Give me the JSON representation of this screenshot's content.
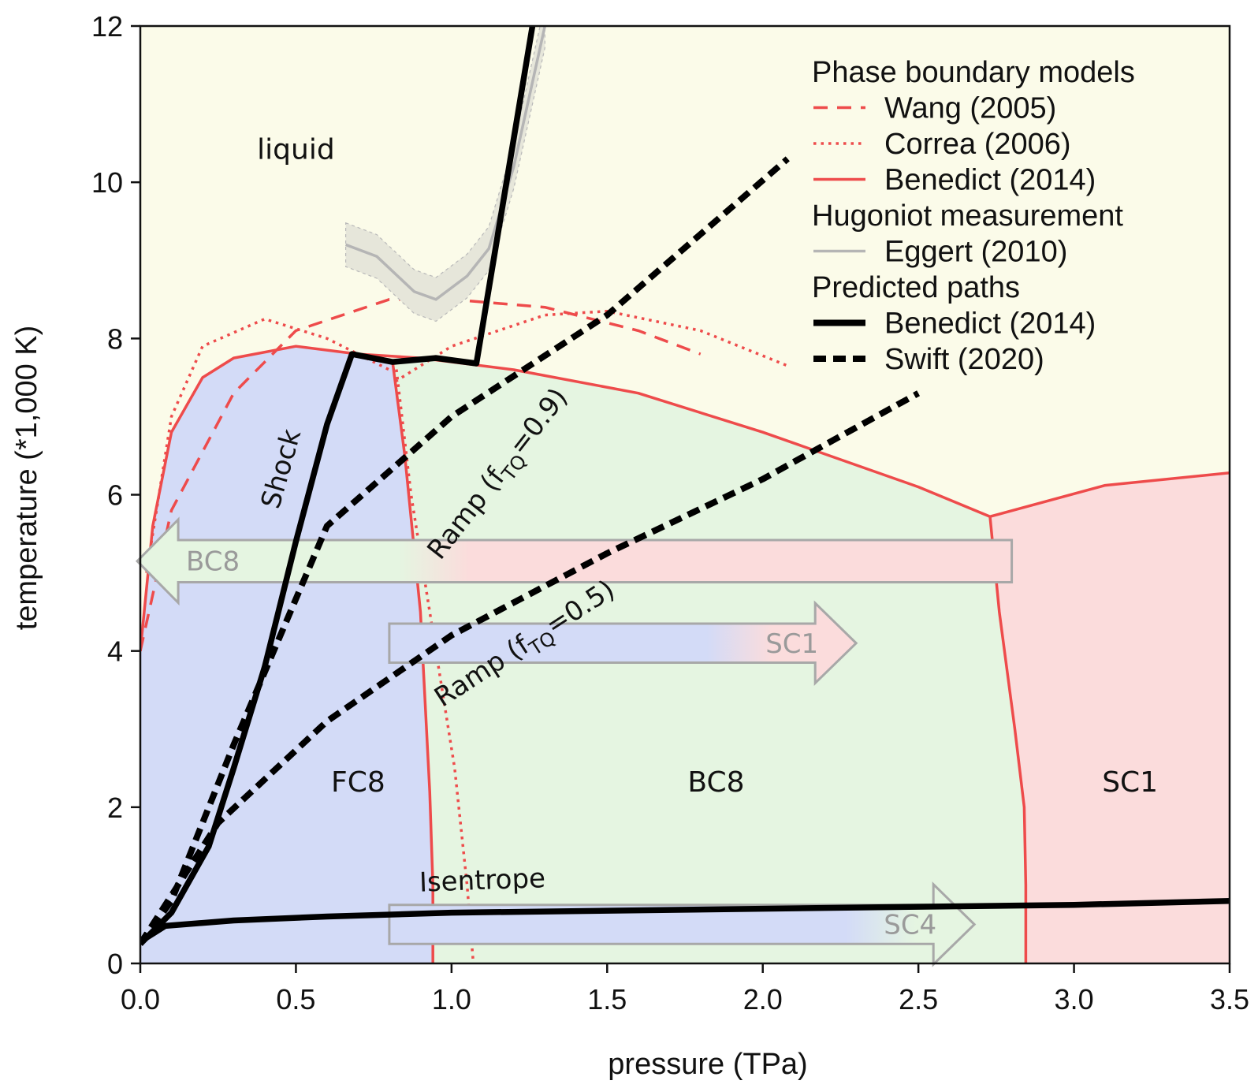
{
  "chart_data": {
    "type": "line",
    "xlabel": "pressure (TPa)",
    "ylabel": "temperature (*1,000 K)",
    "xlim": [
      0,
      3.5
    ],
    "ylim": [
      0,
      12
    ],
    "xticks": [
      "0.0",
      "0.5",
      "1.0",
      "1.5",
      "2.0",
      "2.5",
      "3.0",
      "3.5"
    ],
    "yticks": [
      "0",
      "2",
      "4",
      "6",
      "8",
      "10",
      "12"
    ],
    "colors": {
      "liquid": "#fbfbe9",
      "fc8": "#d3dbf7",
      "bc8": "#e5f5e1",
      "sc1": "#fbdcdc",
      "boundary": "#ee4b4b",
      "path": "#000000",
      "hugoniot": "#b5b5b5",
      "arrow_outline": "#a8a8a8"
    },
    "legend": {
      "position": "top-right",
      "groups": [
        {
          "title": "Phase boundary models",
          "items": [
            {
              "label": "Wang (2005)",
              "style": "dashed",
              "color": "#ee4b4b"
            },
            {
              "label": "Correa (2006)",
              "style": "dotted",
              "color": "#ee4b4b"
            },
            {
              "label": "Benedict (2014)",
              "style": "solid",
              "color": "#ee4b4b"
            }
          ]
        },
        {
          "title": "Hugoniot measurement",
          "items": [
            {
              "label": "Eggert (2010)",
              "style": "solid",
              "color": "#b5b5b5"
            }
          ]
        },
        {
          "title": "Predicted paths",
          "items": [
            {
              "label": "Benedict (2014)",
              "style": "solid-thick",
              "color": "#000000"
            },
            {
              "label": "Swift (2020)",
              "style": "dashed-thick",
              "color": "#000000"
            }
          ]
        }
      ]
    },
    "regions": [
      {
        "label": "liquid",
        "x": 0.5,
        "y": 10.3
      },
      {
        "label": "FC8",
        "x": 0.7,
        "y": 2.2
      },
      {
        "label": "BC8",
        "x": 1.85,
        "y": 2.2
      },
      {
        "label": "SC1",
        "x": 3.18,
        "y": 2.2
      }
    ],
    "phase_boundaries": {
      "benedict_melt": [
        [
          0,
          4.0
        ],
        [
          0.04,
          5.6
        ],
        [
          0.1,
          6.8
        ],
        [
          0.2,
          7.5
        ],
        [
          0.3,
          7.75
        ],
        [
          0.5,
          7.9
        ],
        [
          0.7,
          7.8
        ],
        [
          0.9,
          7.75
        ],
        [
          1.2,
          7.6
        ],
        [
          1.6,
          7.3
        ],
        [
          2.0,
          6.8
        ],
        [
          2.5,
          6.1
        ],
        [
          2.73,
          5.72
        ],
        [
          3.1,
          6.12
        ],
        [
          3.5,
          6.28
        ]
      ],
      "benedict_fc8_bc8": [
        [
          0.81,
          7.72
        ],
        [
          0.85,
          6.5
        ],
        [
          0.9,
          4.5
        ],
        [
          0.93,
          2.2
        ],
        [
          0.94,
          1.0
        ],
        [
          0.94,
          0
        ]
      ],
      "benedict_bc8_sc1": [
        [
          2.73,
          5.72
        ],
        [
          2.76,
          4.5
        ],
        [
          2.81,
          3.0
        ],
        [
          2.84,
          2.0
        ],
        [
          2.845,
          1.0
        ],
        [
          2.845,
          0
        ]
      ],
      "wang_melt": [
        [
          0.0,
          4.0
        ],
        [
          0.1,
          5.8
        ],
        [
          0.3,
          7.3
        ],
        [
          0.5,
          8.1
        ],
        [
          0.8,
          8.5
        ],
        [
          1.0,
          8.5
        ],
        [
          1.3,
          8.4
        ],
        [
          1.6,
          8.1
        ],
        [
          1.8,
          7.8
        ]
      ],
      "correa_melt_fc8": [
        [
          0.02,
          5.0
        ],
        [
          0.1,
          7.0
        ],
        [
          0.2,
          7.9
        ],
        [
          0.4,
          8.25
        ],
        [
          0.6,
          8.0
        ],
        [
          0.8,
          7.6
        ]
      ],
      "correa_melt_bc8": [
        [
          0.82,
          7.45
        ],
        [
          1.0,
          7.9
        ],
        [
          1.3,
          8.3
        ],
        [
          1.5,
          8.35
        ],
        [
          1.8,
          8.1
        ],
        [
          2.08,
          7.65
        ]
      ],
      "correa_fc8_bc8": [
        [
          0.82,
          7.7
        ],
        [
          0.87,
          6.0
        ],
        [
          0.95,
          4.0
        ],
        [
          1.01,
          2.5
        ],
        [
          1.05,
          1.0
        ],
        [
          1.07,
          0
        ]
      ]
    },
    "series": [
      {
        "name": "Benedict (2014)",
        "label": "Shock",
        "style": "solid-thick",
        "points": [
          [
            0.0,
            0.25
          ],
          [
            0.1,
            0.65
          ],
          [
            0.22,
            1.5
          ],
          [
            0.3,
            2.5
          ],
          [
            0.4,
            3.8
          ],
          [
            0.5,
            5.4
          ],
          [
            0.6,
            6.9
          ],
          [
            0.68,
            7.8
          ],
          [
            0.81,
            7.7
          ],
          [
            0.95,
            7.75
          ],
          [
            1.08,
            7.68
          ],
          [
            1.26,
            12.0
          ]
        ]
      },
      {
        "name": "Benedict (2014)",
        "label": "Isentrope",
        "style": "solid-thick",
        "points": [
          [
            0.0,
            0.28
          ],
          [
            0.08,
            0.48
          ],
          [
            0.3,
            0.55
          ],
          [
            0.6,
            0.6
          ],
          [
            1.0,
            0.65
          ],
          [
            2.0,
            0.7
          ],
          [
            3.0,
            0.75
          ],
          [
            3.5,
            0.8
          ]
        ]
      },
      {
        "name": "Swift (2020)",
        "label": "Ramp (fTQ=0.9)",
        "style": "dashed-thick",
        "points": [
          [
            0.0,
            0.25
          ],
          [
            0.1,
            0.8
          ],
          [
            0.3,
            2.8
          ],
          [
            0.6,
            5.6
          ],
          [
            1.0,
            7.0
          ],
          [
            1.5,
            8.3
          ],
          [
            2.08,
            10.3
          ]
        ]
      },
      {
        "name": "Swift (2020)",
        "label": "Ramp (fTQ=0.5)",
        "style": "dashed-thick",
        "points": [
          [
            0.0,
            0.25
          ],
          [
            0.25,
            1.8
          ],
          [
            0.6,
            3.1
          ],
          [
            1.0,
            4.2
          ],
          [
            1.5,
            5.25
          ],
          [
            2.0,
            6.2
          ],
          [
            2.5,
            7.3
          ]
        ]
      },
      {
        "name": "Eggert (2010)",
        "style": "solid",
        "points": [
          [
            0.66,
            9.2
          ],
          [
            0.76,
            9.05
          ],
          [
            0.88,
            8.6
          ],
          [
            0.95,
            8.5
          ],
          [
            1.05,
            8.8
          ],
          [
            1.12,
            9.15
          ],
          [
            1.2,
            10.2
          ],
          [
            1.3,
            12.0
          ]
        ]
      }
    ],
    "path_labels": [
      {
        "key": "shock",
        "text": "Shock",
        "x": 0.48,
        "y": 6.3,
        "angle": -74
      },
      {
        "key": "ramp09",
        "text": "Ramp (f",
        "sub": "TQ",
        "tail": "=0.9)",
        "x": 1.17,
        "y": 6.2,
        "angle": -52
      },
      {
        "key": "ramp05",
        "text": "Ramp (f",
        "sub": "TQ",
        "tail": "=0.5)",
        "x": 1.25,
        "y": 4.0,
        "angle": -33
      },
      {
        "key": "isentrope",
        "text": "Isentrope",
        "x": 1.1,
        "y": 0.95,
        "angle": -2
      }
    ],
    "arrows": [
      {
        "label": "BC8",
        "direction": "left",
        "from_x": 2.8,
        "to_x": -0.01,
        "y": 5.15,
        "band": [
          4.88,
          5.42
        ],
        "fill": [
          "bc8",
          "sc1"
        ]
      },
      {
        "label": "SC1",
        "direction": "right",
        "from_x": 0.8,
        "to_x": 2.3,
        "y": 4.1,
        "band": [
          3.85,
          4.35
        ],
        "fill": [
          "fc8",
          "sc1"
        ]
      },
      {
        "label": "SC4",
        "direction": "right",
        "from_x": 0.8,
        "to_x": 2.68,
        "y": 0.5,
        "band": [
          0.25,
          0.75
        ],
        "fill": [
          "fc8",
          "bc8"
        ]
      }
    ]
  }
}
